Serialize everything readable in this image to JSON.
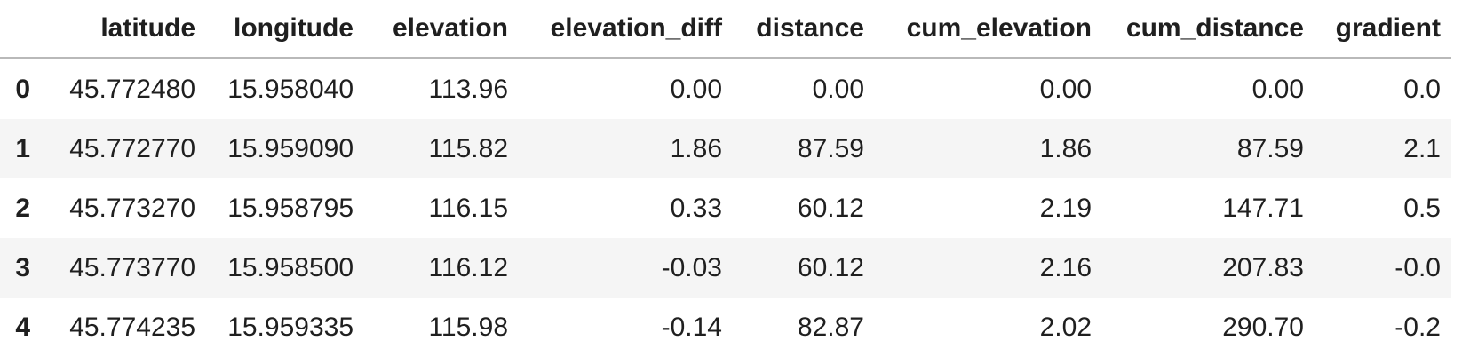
{
  "table": {
    "corner_label": "",
    "columns": [
      "latitude",
      "longitude",
      "elevation",
      "elevation_diff",
      "distance",
      "cum_elevation",
      "cum_distance",
      "gradient"
    ],
    "rows": [
      {
        "index": "0",
        "values": [
          "45.772480",
          "15.958040",
          "113.96",
          "0.00",
          "0.00",
          "0.00",
          "0.00",
          "0.0"
        ]
      },
      {
        "index": "1",
        "values": [
          "45.772770",
          "15.959090",
          "115.82",
          "1.86",
          "87.59",
          "1.86",
          "87.59",
          "2.1"
        ]
      },
      {
        "index": "2",
        "values": [
          "45.773270",
          "15.958795",
          "116.15",
          "0.33",
          "60.12",
          "2.19",
          "147.71",
          "0.5"
        ]
      },
      {
        "index": "3",
        "values": [
          "45.773770",
          "15.958500",
          "116.12",
          "-0.03",
          "60.12",
          "2.16",
          "207.83",
          "-0.0"
        ]
      },
      {
        "index": "4",
        "values": [
          "45.774235",
          "15.959335",
          "115.98",
          "-0.14",
          "82.87",
          "2.02",
          "290.70",
          "-0.2"
        ]
      }
    ],
    "colors": {
      "stripe": "#f5f5f5",
      "border": "#b9b9b9",
      "text": "#1f1f1f"
    }
  }
}
